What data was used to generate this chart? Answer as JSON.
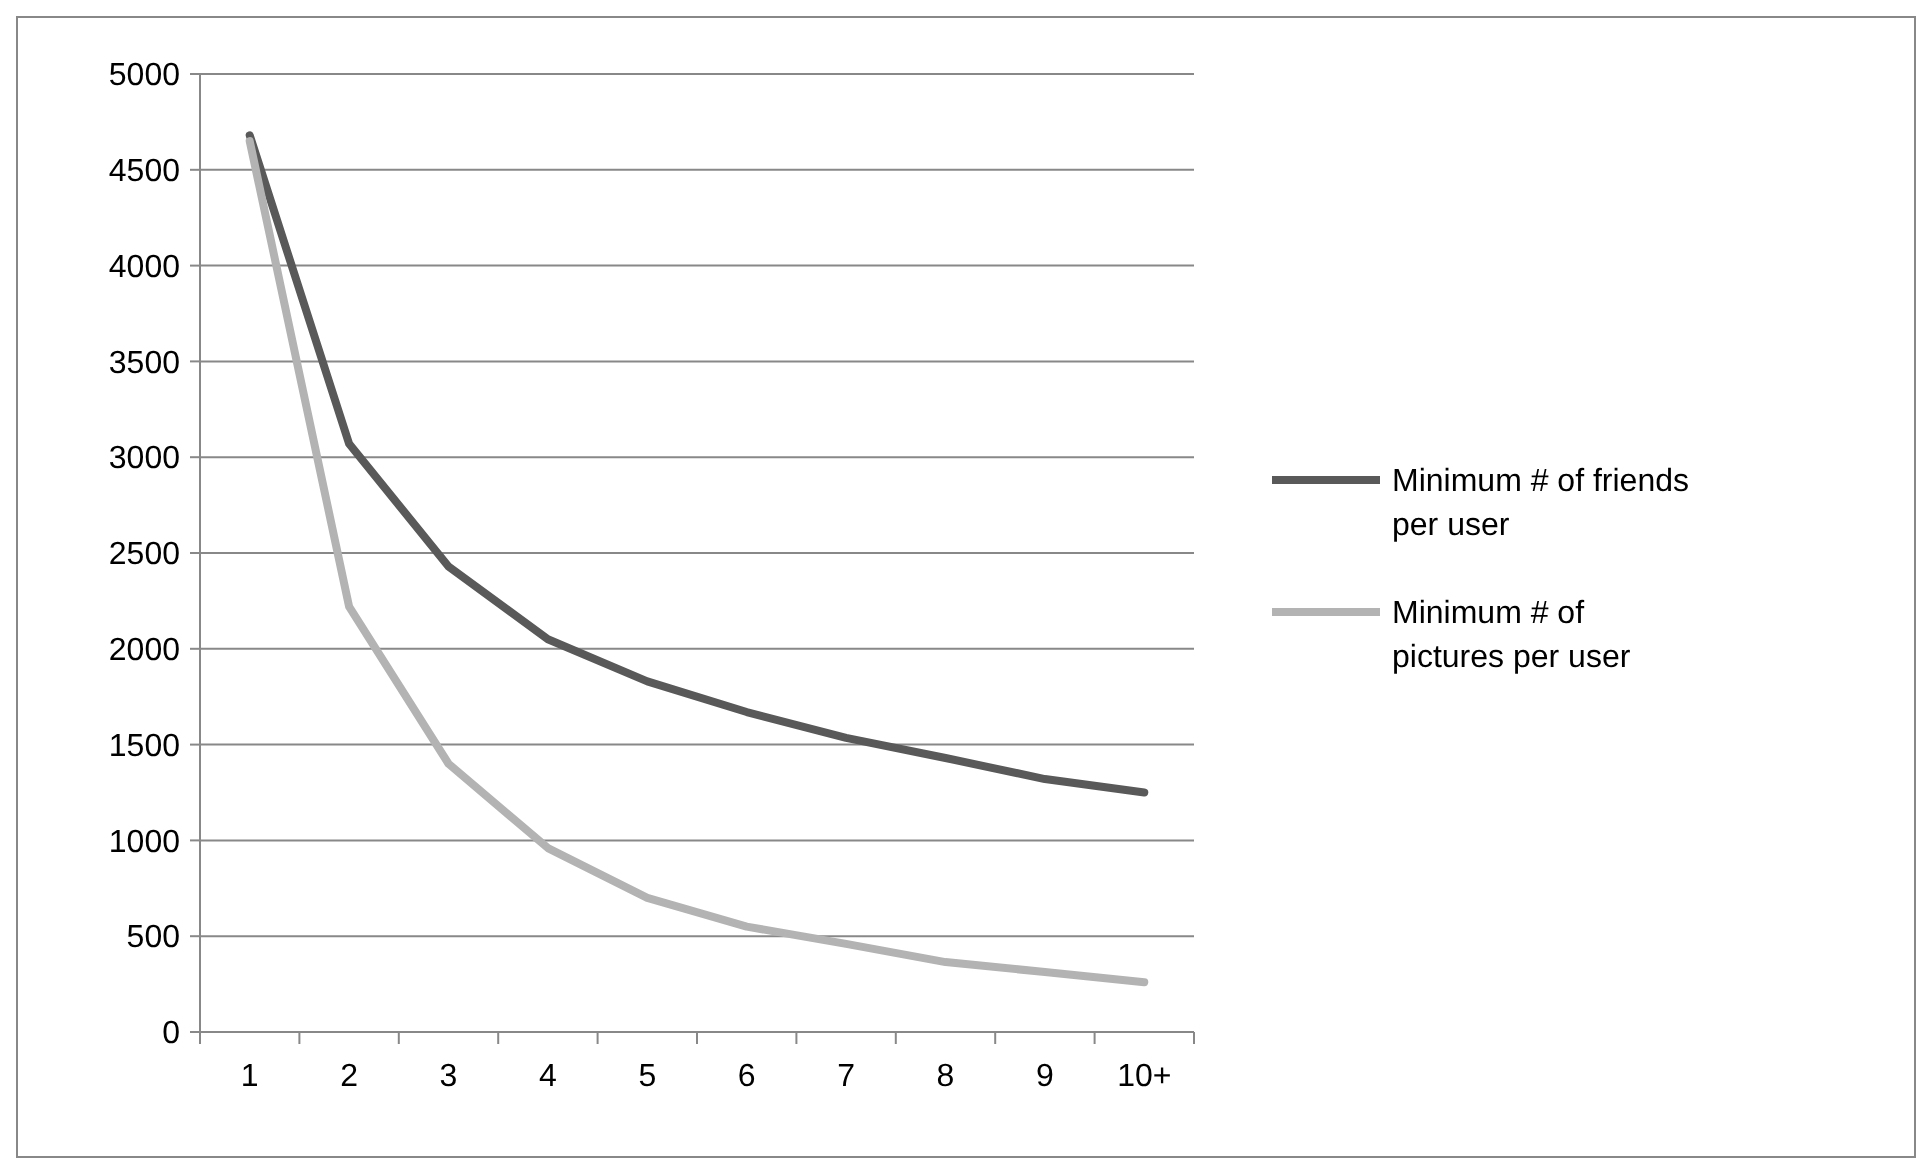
{
  "chart_data": {
    "type": "line",
    "categories": [
      "1",
      "2",
      "3",
      "4",
      "5",
      "6",
      "7",
      "8",
      "9",
      "10+"
    ],
    "series": [
      {
        "name": "Minimum # of friends per user",
        "color": "#595959",
        "values": [
          4680,
          3070,
          2430,
          2050,
          1830,
          1670,
          1535,
          1430,
          1320,
          1250
        ]
      },
      {
        "name": "Minimum # of pictures per user",
        "color": "#b3b3b3",
        "values": [
          4650,
          2220,
          1400,
          960,
          700,
          550,
          460,
          365,
          313,
          260
        ]
      }
    ],
    "ylim": [
      0,
      5000
    ],
    "yticks": [
      0,
      500,
      1000,
      1500,
      2000,
      2500,
      3000,
      3500,
      4000,
      4500,
      5000
    ],
    "grid": "y",
    "legend": "right",
    "marker": "none",
    "line_style": "solid"
  }
}
